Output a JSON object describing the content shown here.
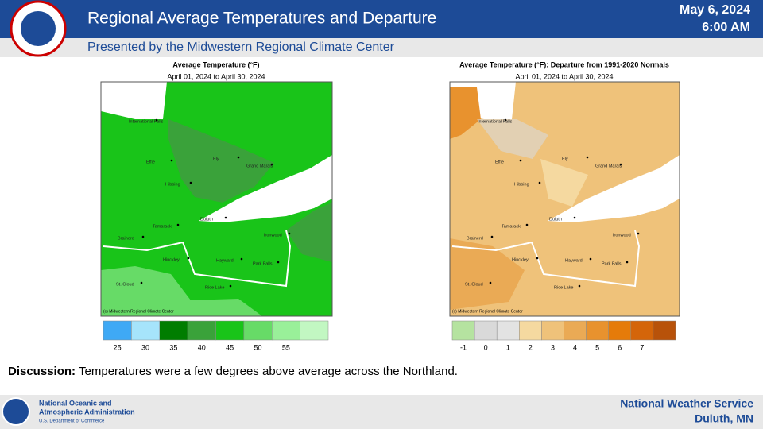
{
  "header": {
    "title": "Regional Average Temperatures and Departure",
    "date": "May 6, 2024",
    "time": "6:00 AM",
    "subtitle": "Presented by the Midwestern Regional Climate Center"
  },
  "maps": [
    {
      "title": "Average Temperature (°F)",
      "period": "April 01, 2024 to April 30, 2024",
      "credit": "(c) Midwestern Regional Climate Center",
      "legend": {
        "ticks": [
          25,
          30,
          35,
          40,
          45,
          50,
          55
        ],
        "colors": [
          "#3fa9f5",
          "#a6e4fb",
          "#007d00",
          "#3aa23a",
          "#19c419",
          "#67db67",
          "#99f099",
          "#c2f7c2"
        ]
      }
    },
    {
      "title": "Average Temperature (°F): Departure from 1991-2020 Normals",
      "period": "April 01, 2024 to April 30, 2024",
      "credit": "(c) Midwestern Regional Climate Center",
      "legend": {
        "ticks": [
          -1,
          0,
          1,
          2,
          3,
          4,
          5,
          6,
          7
        ],
        "colors": [
          "#b5e3a0",
          "#d9d9d9",
          "#e3e3e3",
          "#f5d9a0",
          "#efc27a",
          "#eaaa55",
          "#e8922e",
          "#e57b0a",
          "#d4650a",
          "#b8520a"
        ]
      }
    }
  ],
  "cities": [
    "International Falls",
    "Effie",
    "Ely",
    "Grand Marais",
    "Hibbing",
    "Duluth",
    "Tamarack",
    "Brainerd",
    "Ironwood",
    "Hinckley",
    "Hayward",
    "Park Falls",
    "St. Cloud",
    "Rice Lake"
  ],
  "discussion": {
    "label": "Discussion:",
    "text": "Temperatures were a few degrees above average across the Northland."
  },
  "footer": {
    "agency_line1": "National Oceanic and",
    "agency_line2": "Atmospheric Administration",
    "department": "U.S. Department of Commerce",
    "office": "National Weather Service",
    "location": "Duluth, MN"
  }
}
